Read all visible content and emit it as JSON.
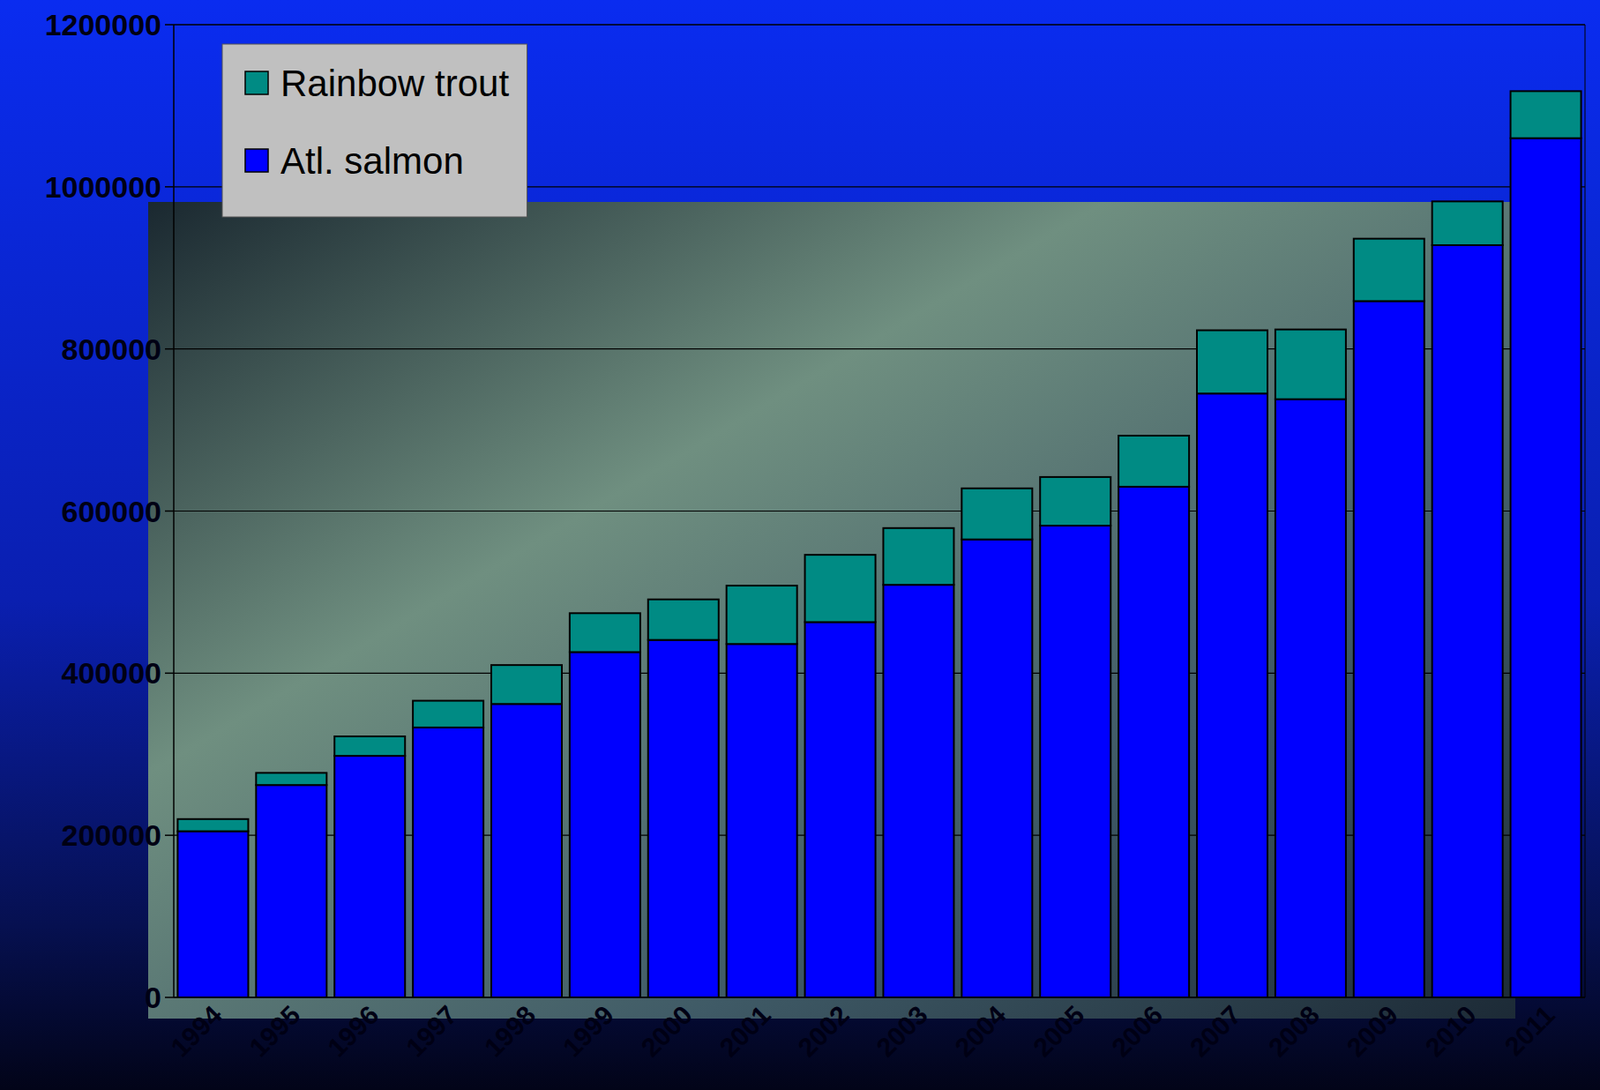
{
  "chart_data": {
    "type": "bar",
    "stacked": true,
    "categories": [
      "1994",
      "1995",
      "1996",
      "1997",
      "1998",
      "1999",
      "2000",
      "2001",
      "2002",
      "2003",
      "2004",
      "2005",
      "2006",
      "2007",
      "2008",
      "2009",
      "2010",
      "2011"
    ],
    "series": [
      {
        "name": "Atl. salmon",
        "color": "#0000ff",
        "values": [
          205000,
          262000,
          298000,
          333000,
          362000,
          426000,
          441000,
          436000,
          463000,
          509000,
          565000,
          582000,
          630000,
          745000,
          738000,
          859000,
          928000,
          1060000
        ]
      },
      {
        "name": "Rainbow trout",
        "color": "#008b84",
        "values": [
          15000,
          15000,
          24000,
          33000,
          48000,
          48000,
          50000,
          72000,
          83000,
          70000,
          63000,
          60000,
          63000,
          78000,
          86000,
          77000,
          54000,
          58000
        ]
      }
    ],
    "ylim": [
      0,
      1200000
    ],
    "yticks": [
      0,
      200000,
      400000,
      600000,
      800000,
      1000000,
      1200000
    ],
    "grid": true,
    "legend": "top-left"
  }
}
